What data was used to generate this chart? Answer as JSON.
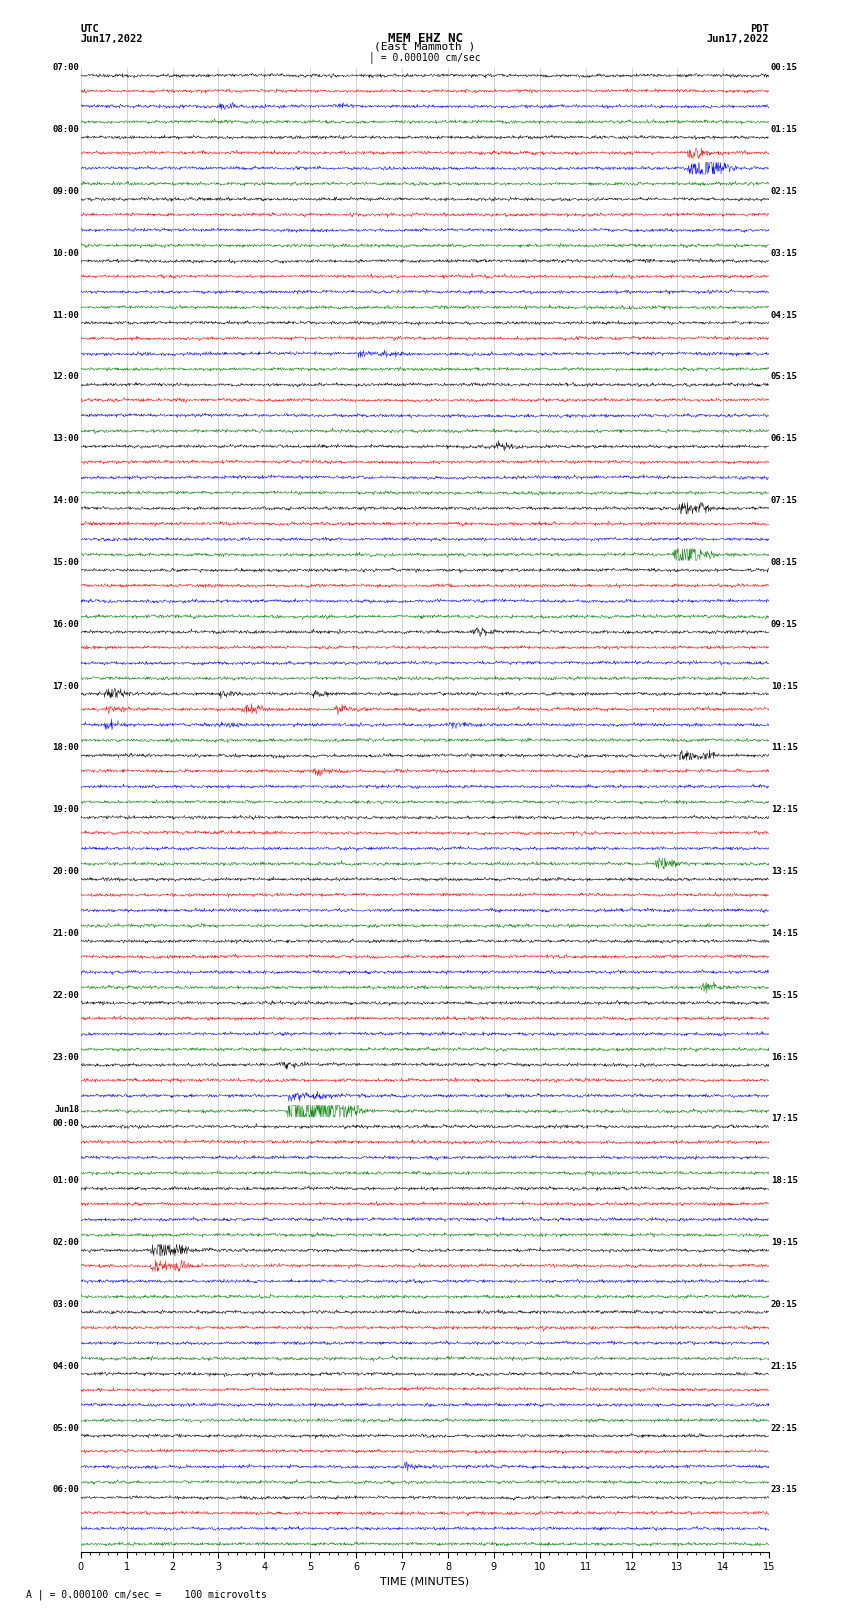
{
  "title_line1": "MEM EHZ NC",
  "title_line2": "(East Mammoth )",
  "scale_label": "= 0.000100 cm/sec",
  "utc_label": "UTC",
  "pdt_label": "PDT",
  "date_left_top": "Jun17,2022",
  "date_right_top": "Jun17,2022",
  "footer_text": "= 0.000100 cm/sec =    100 microvolts",
  "xlabel": "TIME (MINUTES)",
  "xlim": [
    0,
    15
  ],
  "xticks": [
    0,
    1,
    2,
    3,
    4,
    5,
    6,
    7,
    8,
    9,
    10,
    11,
    12,
    13,
    14,
    15
  ],
  "bg_color": "white",
  "line_colors": [
    "black",
    "red",
    "blue",
    "green"
  ],
  "num_hour_groups": 24,
  "utc_hour_labels": [
    "07:00",
    "08:00",
    "09:00",
    "10:00",
    "11:00",
    "12:00",
    "13:00",
    "14:00",
    "15:00",
    "16:00",
    "17:00",
    "18:00",
    "19:00",
    "20:00",
    "21:00",
    "22:00",
    "23:00",
    "Jun18\n00:00",
    "01:00",
    "02:00",
    "03:00",
    "04:00",
    "05:00",
    "06:00"
  ],
  "pdt_hour_labels": [
    "00:15",
    "01:15",
    "02:15",
    "03:15",
    "04:15",
    "05:15",
    "06:15",
    "07:15",
    "08:15",
    "09:15",
    "10:15",
    "11:15",
    "12:15",
    "13:15",
    "14:15",
    "15:15",
    "16:15",
    "17:15",
    "18:15",
    "19:15",
    "20:15",
    "21:15",
    "22:15",
    "23:15"
  ],
  "fig_width": 8.5,
  "fig_height": 16.13
}
